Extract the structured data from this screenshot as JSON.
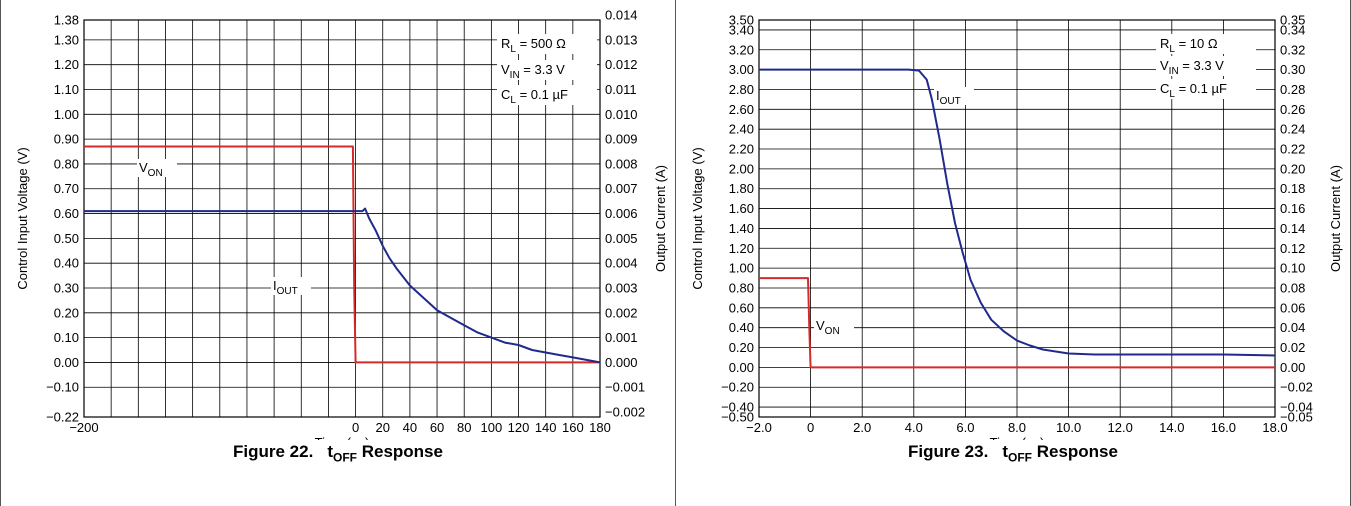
{
  "charts": [
    {
      "figure_number": "Figure 22.",
      "caption_main": "t",
      "caption_sub": "OFF",
      "caption_rest": " Response"
    },
    {
      "figure_number": "Figure 23.",
      "caption_main": "t",
      "caption_sub": "OFF",
      "caption_rest": " Response"
    }
  ],
  "colors": {
    "von": "#d42a2a",
    "iout": "#1f2a8c",
    "grid": "#000000"
  },
  "chart_data": [
    {
      "type": "line",
      "title": "Figure 22. tOFF Response",
      "xlabel": "Time (µs)",
      "ylabel": "Control Input Voltage (V)",
      "y2label": "Output Current (A)",
      "xlim": [
        -200,
        180
      ],
      "ylim": [
        -0.22,
        1.38
      ],
      "y2lim": [
        -0.0022,
        0.0138
      ],
      "xticks": [
        -200,
        -180,
        -160,
        -140,
        -120,
        -100,
        -80,
        -60,
        -40,
        -20,
        0,
        20,
        40,
        60,
        80,
        100,
        120,
        140,
        160,
        180
      ],
      "xtick_labels": [
        "−200",
        "",
        "",
        "",
        "",
        "",
        "",
        "",
        "",
        "",
        "0",
        "20",
        "40",
        "60",
        "80",
        "100",
        "120",
        "140",
        "160",
        "180"
      ],
      "ylabels": [
        "1.38",
        "1.30",
        "1.20",
        "1.10",
        "1.00",
        "0.90",
        "0.80",
        "0.70",
        "0.60",
        "0.50",
        "0.40",
        "0.30",
        "0.20",
        "0.10",
        "0.00",
        "−0.10",
        "−0.22"
      ],
      "yticks": [
        1.38,
        1.3,
        1.2,
        1.1,
        1.0,
        0.9,
        0.8,
        0.7,
        0.6,
        0.5,
        0.4,
        0.3,
        0.2,
        0.1,
        0.0,
        -0.1,
        -0.22
      ],
      "y2labels": [
        "0.014",
        "0.013",
        "0.012",
        "0.011",
        "0.010",
        "0.009",
        "0.008",
        "0.007",
        "0.006",
        "0.005",
        "0.004",
        "0.003",
        "0.002",
        "0.001",
        "0.000",
        "−0.001",
        "−0.002"
      ],
      "y2ticks": [
        0.014,
        0.013,
        0.012,
        0.011,
        0.01,
        0.009,
        0.008,
        0.007,
        0.006,
        0.005,
        0.004,
        0.003,
        0.002,
        0.001,
        0.0,
        -0.001,
        -0.002
      ],
      "annotations": [
        {
          "main": "R",
          "sub": "L",
          "rest": " = 500 Ω"
        },
        {
          "main": "V",
          "sub": "IN",
          "rest": " = 3.3 V"
        },
        {
          "main": "C",
          "sub": "L",
          "rest": " = 0.1 µF"
        }
      ],
      "series": [
        {
          "name": "VON",
          "label_main": "V",
          "label_sub": "ON",
          "axis": "left",
          "x": [
            -200,
            -2,
            -1,
            0,
            180
          ],
          "y": [
            0.87,
            0.87,
            0.3,
            0.0,
            0.0
          ]
        },
        {
          "name": "IOUT",
          "label_main": "I",
          "label_sub": "OUT",
          "axis": "right",
          "x": [
            -200,
            -2,
            0,
            5,
            7,
            10,
            15,
            20,
            25,
            30,
            40,
            50,
            60,
            70,
            80,
            90,
            100,
            110,
            120,
            130,
            140,
            150,
            160,
            170,
            180
          ],
          "y": [
            0.0061,
            0.0061,
            0.0061,
            0.0061,
            0.0062,
            0.0058,
            0.0053,
            0.0047,
            0.0042,
            0.0038,
            0.0031,
            0.0026,
            0.0021,
            0.0018,
            0.0015,
            0.0012,
            0.001,
            0.0008,
            0.0007,
            0.0005,
            0.0004,
            0.0003,
            0.0002,
            0.0001,
            0.0
          ]
        }
      ]
    },
    {
      "type": "line",
      "title": "Figure 23. tOFF Response",
      "xlabel": "Time (µs)",
      "ylabel": "Control Input Voltage (V)",
      "y2label": "Output Current (A)",
      "xlim": [
        -2.0,
        18.0
      ],
      "ylim": [
        -0.5,
        3.5
      ],
      "y2lim": [
        -0.05,
        0.35
      ],
      "xticks": [
        -2.0,
        0,
        2.0,
        4.0,
        6.0,
        8.0,
        10.0,
        12.0,
        14.0,
        16.0,
        18.0
      ],
      "xtick_labels": [
        "−2.0",
        "0",
        "2.0",
        "4.0",
        "6.0",
        "8.0",
        "10.0",
        "12.0",
        "14.0",
        "16.0",
        "18.0"
      ],
      "ylabels": [
        "3.50",
        "3.40",
        "3.20",
        "3.00",
        "2.80",
        "2.60",
        "2.40",
        "2.20",
        "2.00",
        "1.80",
        "1.60",
        "1.40",
        "1.20",
        "1.00",
        "0.80",
        "0.60",
        "0.40",
        "0.20",
        "0.00",
        "−0.20",
        "−0.40",
        "−0.50"
      ],
      "yticks": [
        3.5,
        3.4,
        3.2,
        3.0,
        2.8,
        2.6,
        2.4,
        2.2,
        2.0,
        1.8,
        1.6,
        1.4,
        1.2,
        1.0,
        0.8,
        0.6,
        0.4,
        0.2,
        0.0,
        -0.2,
        -0.4,
        -0.5
      ],
      "y2labels": [
        "0.35",
        "0.34",
        "0.32",
        "0.30",
        "0.28",
        "0.26",
        "0.24",
        "0.22",
        "0.20",
        "0.18",
        "0.16",
        "0.14",
        "0.12",
        "0.10",
        "0.08",
        "0.06",
        "0.04",
        "0.02",
        "0.00",
        "−0.02",
        "−0.04",
        "−0.05"
      ],
      "y2ticks": [
        0.35,
        0.34,
        0.32,
        0.3,
        0.28,
        0.26,
        0.24,
        0.22,
        0.2,
        0.18,
        0.16,
        0.14,
        0.12,
        0.1,
        0.08,
        0.06,
        0.04,
        0.02,
        0.0,
        -0.02,
        -0.04,
        -0.05
      ],
      "annotations": [
        {
          "main": "R",
          "sub": "L",
          "rest": " = 10 Ω"
        },
        {
          "main": "V",
          "sub": "IN",
          "rest": " = 3.3 V"
        },
        {
          "main": "C",
          "sub": "L",
          "rest": " = 0.1 µF"
        }
      ],
      "series": [
        {
          "name": "VON",
          "label_main": "V",
          "label_sub": "ON",
          "axis": "left",
          "x": [
            -2.0,
            -0.1,
            -0.05,
            0,
            18.0
          ],
          "y": [
            0.9,
            0.9,
            0.4,
            0.0,
            0.0
          ]
        },
        {
          "name": "IOUT",
          "label_main": "I",
          "label_sub": "OUT",
          "axis": "right",
          "x": [
            -2.0,
            3.8,
            4.2,
            4.5,
            4.7,
            5.0,
            5.3,
            5.6,
            5.9,
            6.2,
            6.6,
            7.0,
            7.5,
            8.0,
            8.5,
            9.0,
            10.0,
            11.0,
            12.0,
            14.0,
            16.0,
            18.0
          ],
          "y": [
            0.3,
            0.3,
            0.299,
            0.29,
            0.27,
            0.23,
            0.185,
            0.145,
            0.115,
            0.088,
            0.065,
            0.048,
            0.036,
            0.027,
            0.022,
            0.018,
            0.014,
            0.013,
            0.013,
            0.013,
            0.013,
            0.012
          ]
        }
      ]
    }
  ]
}
